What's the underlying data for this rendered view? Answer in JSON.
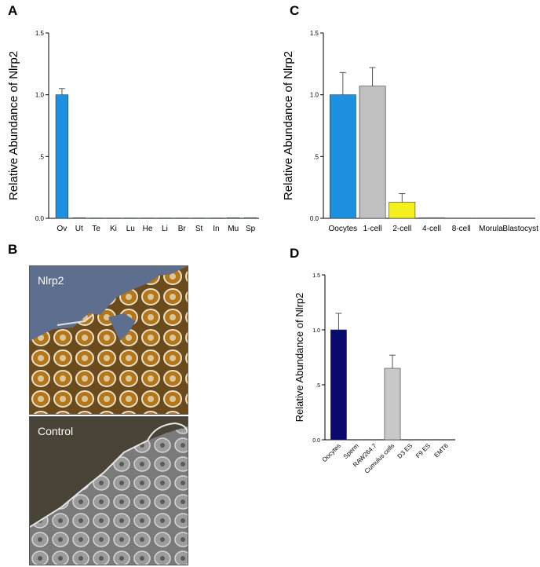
{
  "panels": {
    "a": "A",
    "b": "B",
    "c": "C",
    "d": "D"
  },
  "micrographs": {
    "top_label": "Nlrp2",
    "bottom_label": "Control"
  },
  "colors": {
    "blue_bar": "#1e90e0",
    "gray_bar": "#c0c0c0",
    "yellow_bar": "#f5f01e",
    "navy_bar": "#0a0a6e",
    "light_gray_bar": "#c8c8c8"
  },
  "chart_data": [
    {
      "id": "A",
      "type": "bar",
      "ylabel": "Relative Abundance of Nlrp2",
      "ylim": [
        0,
        1.5
      ],
      "yticks": [
        {
          "v": 0,
          "t": "0.0"
        },
        {
          "v": 0.5,
          "t": ".5"
        },
        {
          "v": 1.0,
          "t": "1.0"
        },
        {
          "v": 1.5,
          "t": "1.5"
        }
      ],
      "categories": [
        "Ov",
        "Ut",
        "Te",
        "Ki",
        "Lu",
        "He",
        "Li",
        "Br",
        "St",
        "In",
        "Mu",
        "Sp"
      ],
      "values": [
        1.0,
        0.005,
        0.003,
        0.003,
        0.003,
        0.003,
        0.003,
        0.003,
        0.003,
        0.003,
        0.005,
        0.005
      ],
      "errors": [
        0.05,
        0.002,
        0.001,
        0.001,
        0.001,
        0.001,
        0.001,
        0.001,
        0.001,
        0.001,
        0.002,
        0.002
      ],
      "colors": [
        "#1e90e0",
        "#1e90e0",
        "#1e90e0",
        "#1e90e0",
        "#1e90e0",
        "#1e90e0",
        "#1e90e0",
        "#1e90e0",
        "#1e90e0",
        "#1e90e0",
        "#1e90e0",
        "#1e90e0"
      ],
      "rotate_labels": false
    },
    {
      "id": "C",
      "type": "bar",
      "ylabel": "Relative Abundance of Nlrp2",
      "ylim": [
        0,
        1.5
      ],
      "yticks": [
        {
          "v": 0,
          "t": "0.0"
        },
        {
          "v": 0.5,
          "t": ".5"
        },
        {
          "v": 1.0,
          "t": "1.0"
        },
        {
          "v": 1.5,
          "t": "1.5"
        }
      ],
      "categories": [
        "Oocytes",
        "1-cell",
        "2-cell",
        "4-cell",
        "8-cell",
        "Morula",
        "Blastocyst"
      ],
      "values": [
        1.0,
        1.07,
        0.13,
        0.005,
        0.003,
        0.003,
        0.003
      ],
      "errors": [
        0.18,
        0.15,
        0.07,
        0.002,
        0.001,
        0.001,
        0.001
      ],
      "colors": [
        "#1e90e0",
        "#c0c0c0",
        "#f5f01e",
        "#c0c0c0",
        "#c0c0c0",
        "#c0c0c0",
        "#c0c0c0"
      ],
      "rotate_labels": false
    },
    {
      "id": "D",
      "type": "bar",
      "ylabel": "Relative Abundance of Nlrp2",
      "ylim": [
        0,
        1.5
      ],
      "yticks": [
        {
          "v": 0,
          "t": "0.0"
        },
        {
          "v": 0.5,
          "t": ".5"
        },
        {
          "v": 1.0,
          "t": "1.0"
        },
        {
          "v": 1.5,
          "t": "1.5"
        }
      ],
      "categories": [
        "Oocytes",
        "Sperm",
        "RAW264.7",
        "Cumulus cells",
        "D3 ES",
        "F9 ES",
        "EMT6"
      ],
      "values": [
        1.0,
        0.003,
        0.003,
        0.65,
        0.003,
        0.003,
        0.003
      ],
      "errors": [
        0.15,
        0.001,
        0.001,
        0.12,
        0.001,
        0.001,
        0.001
      ],
      "colors": [
        "#0a0a6e",
        "#c8c8c8",
        "#c8c8c8",
        "#c8c8c8",
        "#c8c8c8",
        "#c8c8c8",
        "#c8c8c8"
      ],
      "rotate_labels": true
    }
  ]
}
